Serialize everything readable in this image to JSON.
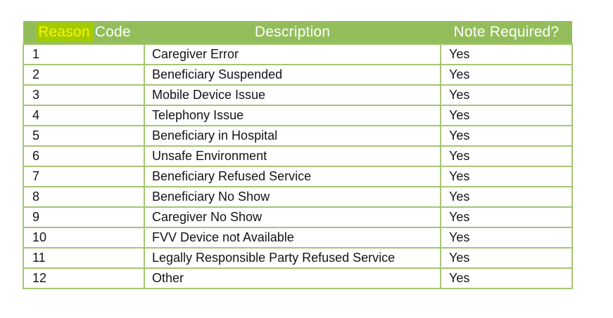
{
  "table": {
    "header": {
      "col1_highlighted": "Reason",
      "col1_rest": "Code",
      "col2": "Description",
      "col3": "Note Required?"
    },
    "rows": [
      {
        "code": "1",
        "description": "Caregiver Error",
        "note_required": "Yes"
      },
      {
        "code": "2",
        "description": "Beneficiary Suspended",
        "note_required": "Yes"
      },
      {
        "code": "3",
        "description": "Mobile Device Issue",
        "note_required": "Yes"
      },
      {
        "code": "4",
        "description": "Telephony Issue",
        "note_required": "Yes"
      },
      {
        "code": "5",
        "description": "Beneficiary in Hospital",
        "note_required": "Yes"
      },
      {
        "code": "6",
        "description": "Unsafe Environment",
        "note_required": "Yes"
      },
      {
        "code": "7",
        "description": "Beneficiary Refused Service",
        "note_required": "Yes"
      },
      {
        "code": "8",
        "description": "Beneficiary No Show",
        "note_required": "Yes"
      },
      {
        "code": "9",
        "description": "Caregiver No Show",
        "note_required": "Yes"
      },
      {
        "code": "10",
        "description": "FVV Device not Available",
        "note_required": "Yes"
      },
      {
        "code": "11",
        "description": "Legally Responsible Party Refused Service",
        "note_required": "Yes"
      },
      {
        "code": "12",
        "description": "Other",
        "note_required": "Yes"
      }
    ]
  },
  "colors": {
    "header_bg": "#93bd5b",
    "header_text": "#ffffff",
    "border": "#a6c573",
    "highlight_bg": "#a2cb01",
    "highlight_text": "#fbf400",
    "body_text": "#141414",
    "page_bg": "#ffffff"
  }
}
